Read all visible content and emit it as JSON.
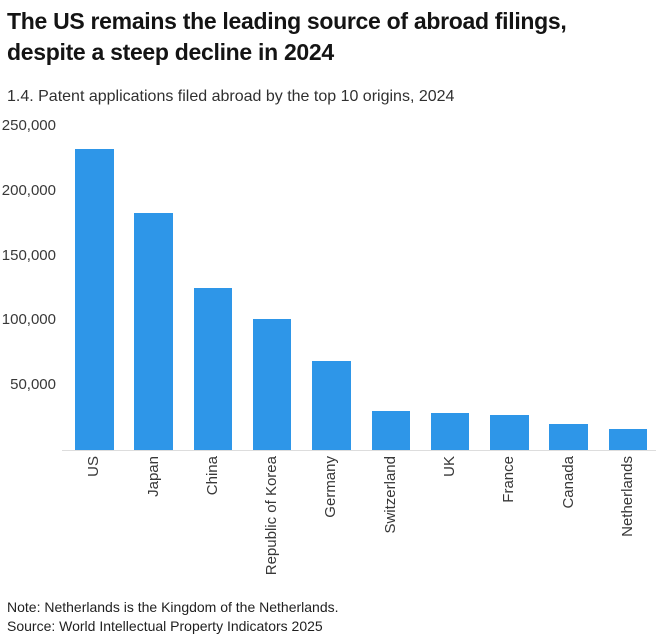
{
  "header": {
    "title_line1": "The US remains the leading source of abroad filings,",
    "title_line2": "despite a steep decline in 2024",
    "subtitle": "1.4. Patent applications filed abroad by the top 10 origins, 2024"
  },
  "footer": {
    "note": "Note: Netherlands is the Kingdom of the Netherlands.",
    "source": "Source: World Intellectual Property Indicators 2025"
  },
  "colors": {
    "bar": "#2E96E8",
    "title_text": "#141414",
    "axis_text": "#383838",
    "baseline": "#dddddd"
  },
  "chart_data": {
    "type": "bar",
    "title": "The US remains the leading source of abroad filings, despite a steep decline in 2024",
    "subtitle": "1.4. Patent applications filed abroad by the top 10 origins, 2024",
    "categories": [
      "US",
      "Japan",
      "China",
      "Republic of Korea",
      "Germany",
      "Switzerland",
      "UK",
      "France",
      "Canada",
      "Netherlands"
    ],
    "values": [
      232000,
      183000,
      125000,
      101000,
      69000,
      30000,
      28500,
      27000,
      20000,
      16500
    ],
    "xlabel": "",
    "ylabel": "",
    "ylim": [
      0,
      250000
    ],
    "yticks": [
      50000,
      100000,
      150000,
      200000,
      250000
    ],
    "ytick_labels": [
      "50,000",
      "100,000",
      "150,000",
      "200,000",
      "250,000"
    ],
    "grid": false,
    "legend": "none",
    "bar_color": "#2E96E8",
    "note": "Note: Netherlands is the Kingdom of the Netherlands.",
    "source": "Source: World Intellectual Property Indicators 2025"
  }
}
